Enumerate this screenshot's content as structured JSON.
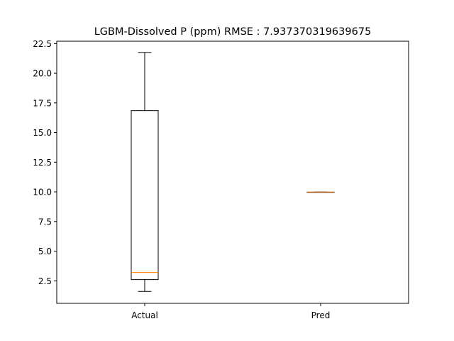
{
  "chart_data": {
    "type": "box",
    "title": "LGBM-Dissolved P (ppm) RMSE : 7.937370319639675",
    "xlabel": "",
    "ylabel": "",
    "categories": [
      "Actual",
      "Pred"
    ],
    "boxes": [
      {
        "name": "Actual",
        "whisker_low": 1.6,
        "q1": 2.6,
        "median": 3.2,
        "q3": 16.85,
        "whisker_high": 21.75
      },
      {
        "name": "Pred",
        "whisker_low": 9.98,
        "q1": 9.98,
        "median": 9.98,
        "q3": 9.98,
        "whisker_high": 9.98
      }
    ],
    "ylim": [
      0.6,
      22.7
    ],
    "yticks": [
      2.5,
      5.0,
      7.5,
      10.0,
      12.5,
      15.0,
      17.5,
      20.0,
      22.5
    ],
    "ytick_labels": [
      "2.5",
      "5.0",
      "7.5",
      "10.0",
      "12.5",
      "15.0",
      "17.5",
      "20.0",
      "22.5"
    ],
    "grid": false,
    "colors": {
      "box": "#000000",
      "median": "#ff7f0e",
      "background": "#ffffff"
    }
  }
}
